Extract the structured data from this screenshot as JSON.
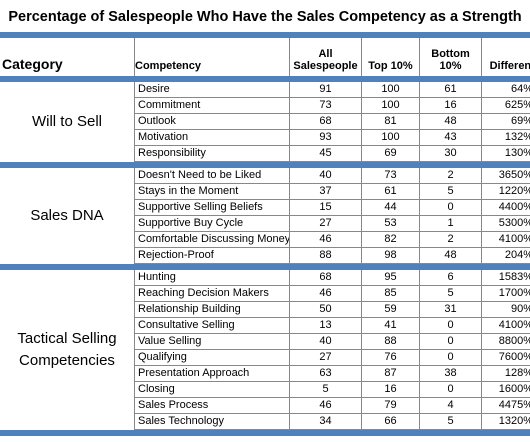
{
  "title": "Percentage of Salespeople Who Have the Sales Competency as a Strength",
  "table": {
    "headers": [
      "Category",
      "Competency",
      "All Salespeople",
      "Top 10%",
      "Bottom 10%",
      "Difference"
    ],
    "groups": [
      {
        "category": "Will to Sell",
        "rows": [
          [
            "Desire",
            91,
            100,
            61,
            "64%"
          ],
          [
            "Commitment",
            73,
            100,
            16,
            "625%"
          ],
          [
            "Outlook",
            68,
            81,
            48,
            "69%"
          ],
          [
            "Motivation",
            93,
            100,
            43,
            "132%"
          ],
          [
            "Responsibility",
            45,
            69,
            30,
            "130%"
          ]
        ]
      },
      {
        "category": "Sales DNA",
        "rows": [
          [
            "Doesn't Need to be Liked",
            40,
            73,
            2,
            "3650%"
          ],
          [
            "Stays in the Moment",
            37,
            61,
            5,
            "1220%"
          ],
          [
            "Supportive Selling Beliefs",
            15,
            44,
            0,
            "4400%"
          ],
          [
            "Supportive Buy Cycle",
            27,
            53,
            1,
            "5300%"
          ],
          [
            "Comfortable Discussing Money",
            46,
            82,
            2,
            "4100%"
          ],
          [
            "Rejection-Proof",
            88,
            98,
            48,
            "204%"
          ]
        ]
      },
      {
        "category": "Tactical Selling Competencies",
        "rows": [
          [
            "Hunting",
            68,
            95,
            6,
            "1583%"
          ],
          [
            "Reaching Decision Makers",
            46,
            85,
            5,
            "1700%"
          ],
          [
            "Relationship Building",
            50,
            59,
            31,
            "90%"
          ],
          [
            "Consultative Selling",
            13,
            41,
            0,
            "4100%"
          ],
          [
            "Value Selling",
            40,
            88,
            0,
            "8800%"
          ],
          [
            "Qualifying",
            27,
            76,
            0,
            "7600%"
          ],
          [
            "Presentation Approach",
            63,
            87,
            38,
            "128%"
          ],
          [
            "Closing",
            5,
            16,
            0,
            "1600%"
          ],
          [
            "Sales Process",
            46,
            79,
            4,
            "4475%"
          ],
          [
            "Sales Technology",
            34,
            66,
            5,
            "1320%"
          ]
        ]
      }
    ]
  }
}
